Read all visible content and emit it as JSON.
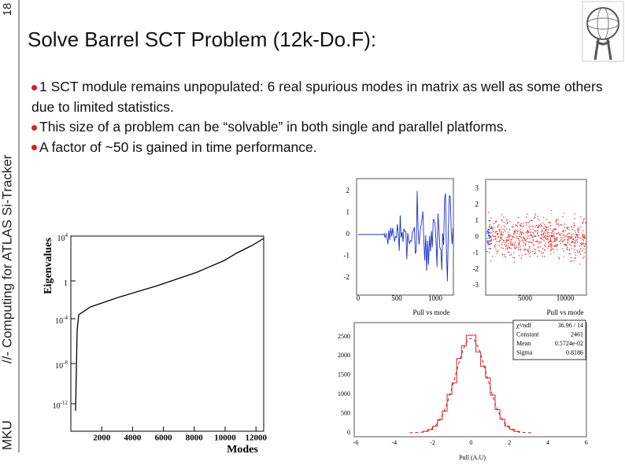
{
  "slide_number": "18",
  "side_label": {
    "author": "MKU",
    "text": "//- Computing for ATLAS Si-Tracker"
  },
  "title": "Solve Barrel SCT Problem (12k-Do.F):",
  "bullets": [
    "1 SCT module remains unpopulated: 6 real spurious modes in matrix as well as some others due to limited statistics.",
    "This size of a problem can be  “solvable” in both single and parallel platforms.",
    "A factor of ~50 is gained in time performance."
  ],
  "eigen_plot": {
    "y_label": "Eigenvalues",
    "x_label": "Modes",
    "yticks": [
      {
        "base": "10",
        "exponent": "4"
      },
      {
        "base": "1"
      },
      {
        "base": "10",
        "exponent": "-4"
      },
      {
        "base": "10",
        "exponent": "-8"
      },
      {
        "base": "10",
        "exponent": "-12"
      }
    ],
    "xticks": [
      "2000",
      "4000",
      "6000",
      "8000",
      "10000",
      "12000"
    ]
  },
  "pull_plot": {
    "x_label": "Pull vs mode",
    "yticks": [
      "2",
      "1",
      "0",
      "-1",
      "-2"
    ],
    "xticks": [
      "0",
      "500",
      "1000"
    ]
  },
  "scatter_plot": {
    "x_label": "Pull vs mode",
    "yticks": [
      "3",
      "2",
      "1",
      "0",
      "-1",
      "-2",
      "-3"
    ],
    "xticks": [
      "5000",
      "10000"
    ]
  },
  "histogram": {
    "x_label": "Pull (A.U)",
    "yticks": [
      "2500",
      "2000",
      "1500",
      "1000",
      "500",
      "0"
    ],
    "xticks": [
      "-6",
      "-4",
      "-2",
      "0",
      "2",
      "4",
      "6"
    ],
    "stats": [
      [
        "χ²/ndf",
        "36.96  /  14"
      ],
      [
        "Constant",
        "2461"
      ],
      [
        "Mean",
        "0.5724e-02"
      ],
      [
        "Sigma",
        "0.8186"
      ]
    ]
  }
}
